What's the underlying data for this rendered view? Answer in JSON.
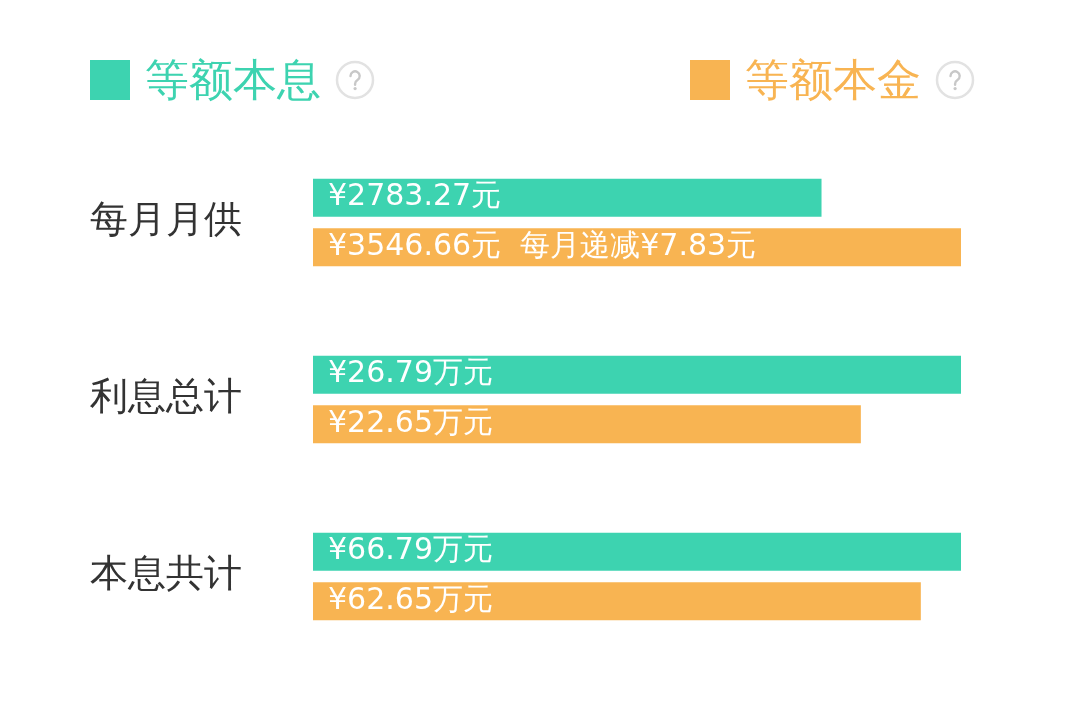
{
  "chart_data": [
    {
      "type": "bar",
      "orientation": "horizontal",
      "categories": [
        "每月月供"
      ],
      "xlim": [
        0,
        3546.66
      ],
      "tick_labels": "y",
      "legend": "top",
      "series": [
        {
          "name": "等额本息",
          "color": "#3dd3b0",
          "values": [
            2783.27
          ],
          "value_labels": [
            "¥2783.27元"
          ]
        },
        {
          "name": "等额本金",
          "color": "#f8b452",
          "values": [
            3546.66
          ],
          "value_labels": [
            "¥3546.66元  每月递减¥7.83元"
          ]
        }
      ]
    },
    {
      "type": "bar",
      "orientation": "horizontal",
      "categories": [
        "利息总计"
      ],
      "xlim": [
        0,
        26.79
      ],
      "tick_labels": "y",
      "series": [
        {
          "color": "#3dd3b0",
          "values": [
            26.79
          ],
          "value_labels": [
            "¥26.79万元"
          ]
        },
        {
          "color": "#f8b452",
          "values": [
            22.65
          ],
          "value_labels": [
            "¥22.65万元"
          ]
        }
      ]
    },
    {
      "type": "bar",
      "orientation": "horizontal",
      "categories": [
        "本息共计"
      ],
      "xlim": [
        0,
        66.79
      ],
      "tick_labels": "y",
      "series": [
        {
          "color": "#3dd3b0",
          "values": [
            66.79
          ],
          "value_labels": [
            "¥66.79万元"
          ]
        },
        {
          "color": "#f8b452",
          "values": [
            62.65
          ],
          "value_labels": [
            "¥62.65万元"
          ]
        }
      ]
    }
  ]
}
